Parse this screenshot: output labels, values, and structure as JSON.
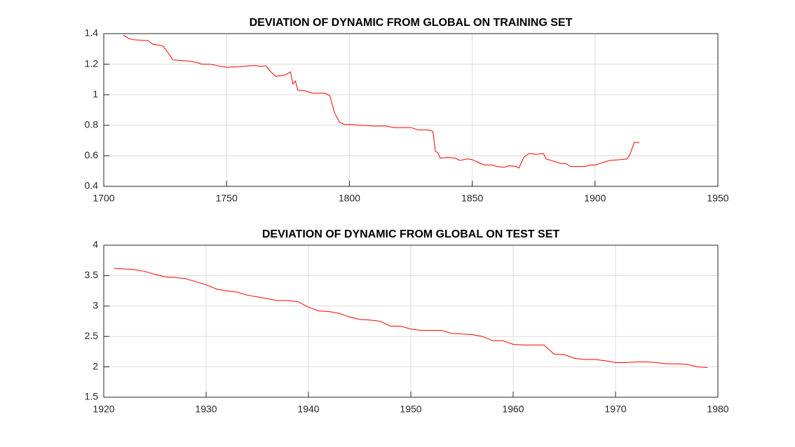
{
  "chart_data": [
    {
      "type": "line",
      "title": "DEVIATION OF DYNAMIC FROM GLOBAL ON TRAINING SET",
      "xlim": [
        1700,
        1950
      ],
      "xticks": [
        1700,
        1750,
        1800,
        1850,
        1900,
        1950
      ],
      "ylim": [
        0.4,
        1.4
      ],
      "yticks": [
        0.4,
        0.6,
        0.8,
        1,
        1.2,
        1.4
      ],
      "grid": true,
      "x": [
        1708,
        1710,
        1712,
        1718,
        1720,
        1724,
        1726,
        1728,
        1730,
        1735,
        1738,
        1740,
        1743,
        1745,
        1748,
        1750,
        1755,
        1760,
        1762,
        1764,
        1766,
        1768,
        1770,
        1772,
        1774,
        1776,
        1777,
        1778,
        1779,
        1782,
        1785,
        1788,
        1790,
        1792,
        1794,
        1796,
        1798,
        1800,
        1805,
        1810,
        1815,
        1818,
        1825,
        1828,
        1832,
        1834,
        1835,
        1836,
        1837,
        1840,
        1843,
        1845,
        1848,
        1850,
        1852,
        1855,
        1858,
        1860,
        1863,
        1865,
        1868,
        1869,
        1871,
        1873,
        1876,
        1879,
        1880,
        1882,
        1884,
        1886,
        1888,
        1890,
        1893,
        1896,
        1898,
        1900,
        1902,
        1904,
        1906,
        1910,
        1913,
        1914,
        1916,
        1918
      ],
      "series": [
        {
          "color": "#ff0000",
          "values": [
            1.39,
            1.37,
            1.36,
            1.355,
            1.33,
            1.32,
            1.28,
            1.23,
            1.225,
            1.22,
            1.21,
            1.2,
            1.2,
            1.195,
            1.185,
            1.18,
            1.183,
            1.19,
            1.19,
            1.185,
            1.19,
            1.15,
            1.12,
            1.125,
            1.13,
            1.15,
            1.07,
            1.09,
            1.03,
            1.025,
            1.01,
            1.01,
            1.01,
            0.995,
            0.88,
            0.82,
            0.805,
            0.805,
            0.8,
            0.795,
            0.795,
            0.785,
            0.785,
            0.77,
            0.77,
            0.76,
            0.63,
            0.62,
            0.585,
            0.59,
            0.585,
            0.57,
            0.58,
            0.575,
            0.56,
            0.54,
            0.54,
            0.53,
            0.525,
            0.535,
            0.53,
            0.52,
            0.59,
            0.615,
            0.61,
            0.615,
            0.58,
            0.57,
            0.56,
            0.55,
            0.55,
            0.53,
            0.53,
            0.53,
            0.54,
            0.54,
            0.55,
            0.56,
            0.57,
            0.575,
            0.58,
            0.6,
            0.69,
            0.685
          ]
        }
      ]
    },
    {
      "type": "line",
      "title": "DEVIATION OF DYNAMIC FROM GLOBAL ON TEST SET",
      "xlim": [
        1920,
        1980
      ],
      "xticks": [
        1920,
        1930,
        1940,
        1950,
        1960,
        1970,
        1980
      ],
      "ylim": [
        1.5,
        4
      ],
      "yticks": [
        1.5,
        2,
        2.5,
        3,
        3.5,
        4
      ],
      "grid": true,
      "x": [
        1921,
        1922,
        1923,
        1924,
        1925,
        1926,
        1927,
        1928,
        1929,
        1930,
        1931,
        1932,
        1933,
        1934,
        1935,
        1936,
        1937,
        1938,
        1939,
        1940,
        1941,
        1942,
        1943,
        1944,
        1945,
        1946,
        1947,
        1948,
        1949,
        1950,
        1951,
        1952,
        1953,
        1954,
        1955,
        1956,
        1957,
        1958,
        1959,
        1960,
        1961,
        1962,
        1963,
        1964,
        1965,
        1966,
        1967,
        1968,
        1969,
        1970,
        1971,
        1972,
        1973,
        1974,
        1975,
        1976,
        1977,
        1978,
        1979
      ],
      "series": [
        {
          "color": "#ff0000",
          "values": [
            3.62,
            3.61,
            3.6,
            3.57,
            3.52,
            3.48,
            3.47,
            3.45,
            3.4,
            3.35,
            3.28,
            3.25,
            3.23,
            3.18,
            3.15,
            3.12,
            3.09,
            3.09,
            3.07,
            2.98,
            2.92,
            2.91,
            2.88,
            2.82,
            2.78,
            2.77,
            2.75,
            2.67,
            2.67,
            2.62,
            2.6,
            2.6,
            2.6,
            2.55,
            2.54,
            2.53,
            2.5,
            2.43,
            2.43,
            2.37,
            2.36,
            2.36,
            2.36,
            2.21,
            2.2,
            2.14,
            2.12,
            2.12,
            2.1,
            2.07,
            2.07,
            2.08,
            2.08,
            2.07,
            2.05,
            2.05,
            2.04,
            2.0,
            1.99
          ]
        }
      ]
    }
  ]
}
